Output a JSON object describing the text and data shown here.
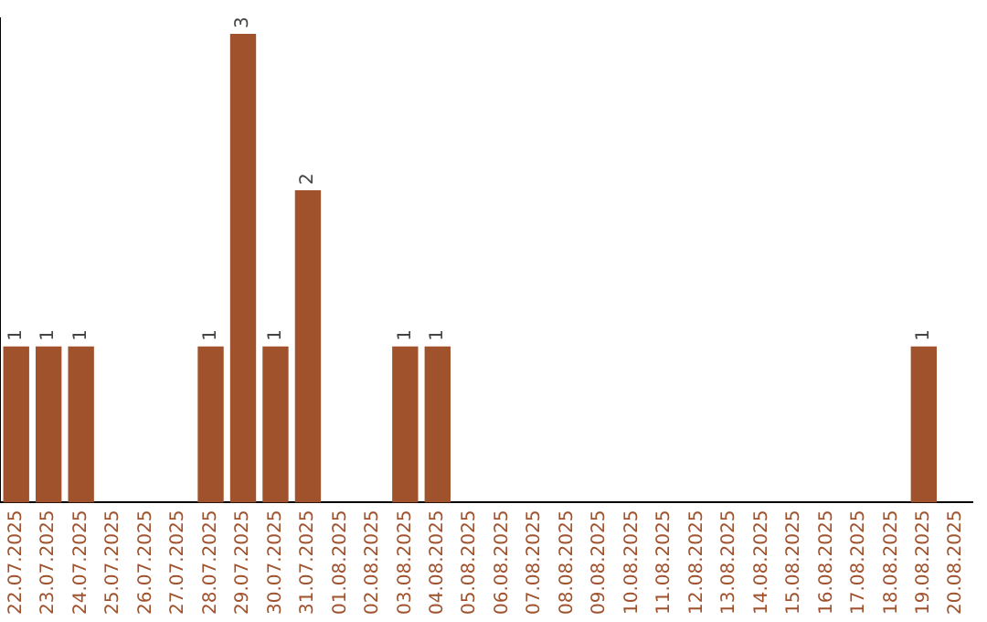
{
  "chart_data": {
    "type": "bar",
    "categories": [
      "22.07.2025",
      "23.07.2025",
      "24.07.2025",
      "25.07.2025",
      "26.07.2025",
      "27.07.2025",
      "28.07.2025",
      "29.07.2025",
      "30.07.2025",
      "31.07.2025",
      "01.08.2025",
      "02.08.2025",
      "03.08.2025",
      "04.08.2025",
      "05.08.2025",
      "06.08.2025",
      "07.08.2025",
      "08.08.2025",
      "09.08.2025",
      "10.08.2025",
      "11.08.2025",
      "12.08.2025",
      "13.08.2025",
      "14.08.2025",
      "15.08.2025",
      "16.08.2025",
      "17.08.2025",
      "18.08.2025",
      "19.08.2025",
      "20.08.2025"
    ],
    "values": [
      1,
      1,
      1,
      0,
      0,
      0,
      1,
      3,
      1,
      2,
      0,
      0,
      1,
      1,
      0,
      0,
      0,
      0,
      0,
      0,
      0,
      0,
      0,
      0,
      0,
      0,
      0,
      0,
      1,
      0
    ],
    "value_labels": [
      "1",
      "1",
      "1",
      null,
      null,
      null,
      "1",
      "3",
      "1",
      "2",
      null,
      null,
      "1",
      "1",
      null,
      null,
      null,
      null,
      null,
      null,
      null,
      null,
      null,
      null,
      null,
      null,
      null,
      null,
      "1",
      null
    ],
    "color": "#a0522d",
    "ylim": [
      0,
      3.1
    ],
    "tick_labels": "x",
    "grid": false,
    "legend": false
  }
}
